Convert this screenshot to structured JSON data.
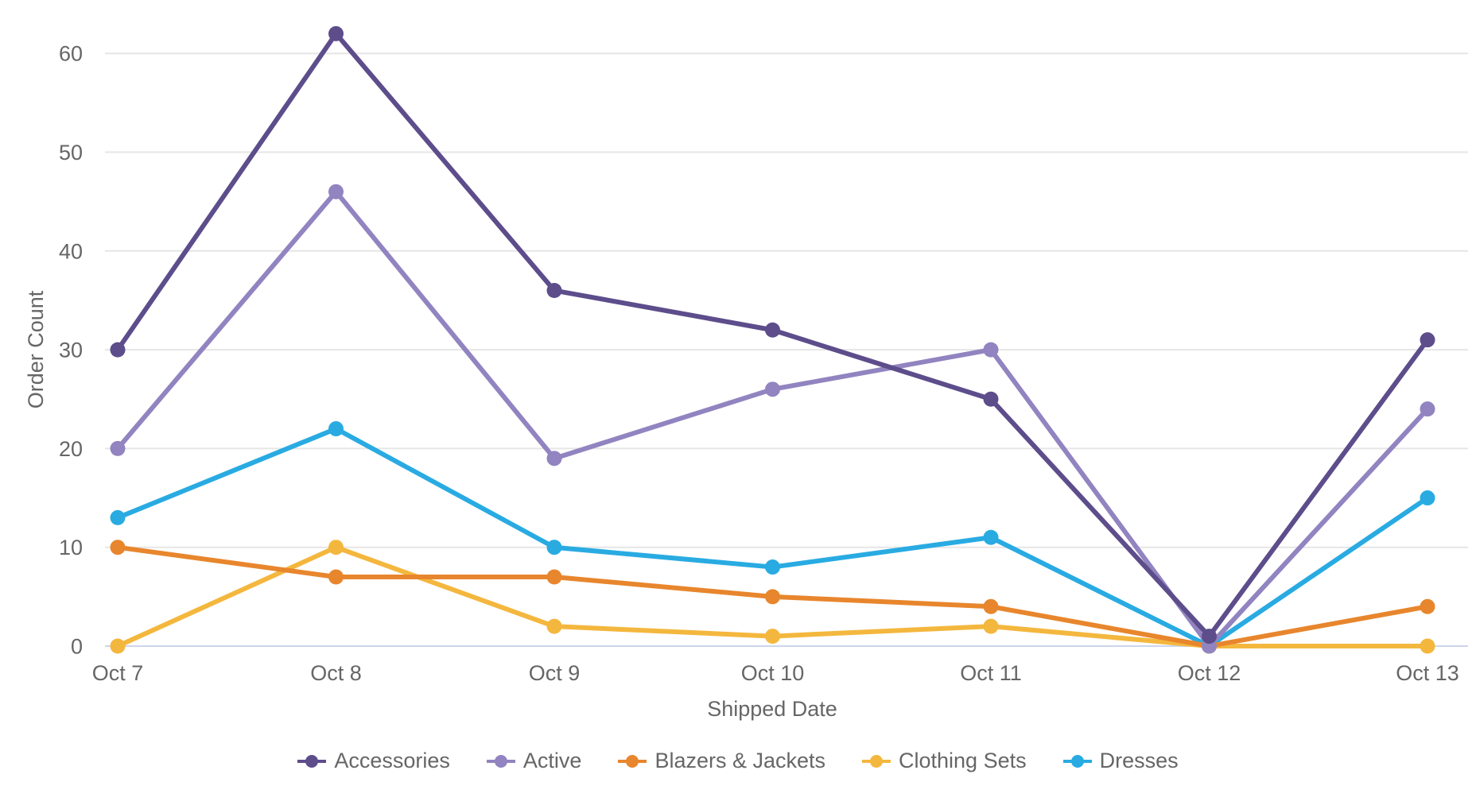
{
  "chart_data": {
    "type": "line",
    "title": "",
    "xlabel": "Shipped Date",
    "ylabel": "Order Count",
    "categories": [
      "Oct 7",
      "Oct 8",
      "Oct 9",
      "Oct 10",
      "Oct 11",
      "Oct 12",
      "Oct 13"
    ],
    "series": [
      {
        "name": "Accessories",
        "color": "#5d4d8b",
        "values": [
          30,
          62,
          36,
          32,
          25,
          1,
          31
        ]
      },
      {
        "name": "Active",
        "color": "#9184c0",
        "values": [
          20,
          46,
          19,
          26,
          30,
          0,
          24
        ]
      },
      {
        "name": "Blazers & Jackets",
        "color": "#e8862d",
        "values": [
          10,
          7,
          7,
          5,
          4,
          0,
          4
        ]
      },
      {
        "name": "Clothing Sets",
        "color": "#f4b73e",
        "values": [
          0,
          10,
          2,
          1,
          2,
          0,
          0
        ]
      },
      {
        "name": "Dresses",
        "color": "#29abe2",
        "values": [
          13,
          22,
          10,
          8,
          11,
          0,
          15
        ]
      }
    ],
    "y_ticks": [
      0,
      10,
      20,
      30,
      40,
      50,
      60
    ],
    "ylim": [
      0,
      65
    ],
    "grid": true,
    "legend_position": "bottom",
    "colors": {
      "grid_line": "#e6e6e6",
      "axis_line": "#ccd6eb",
      "text": "#666666",
      "background": "#ffffff"
    }
  }
}
